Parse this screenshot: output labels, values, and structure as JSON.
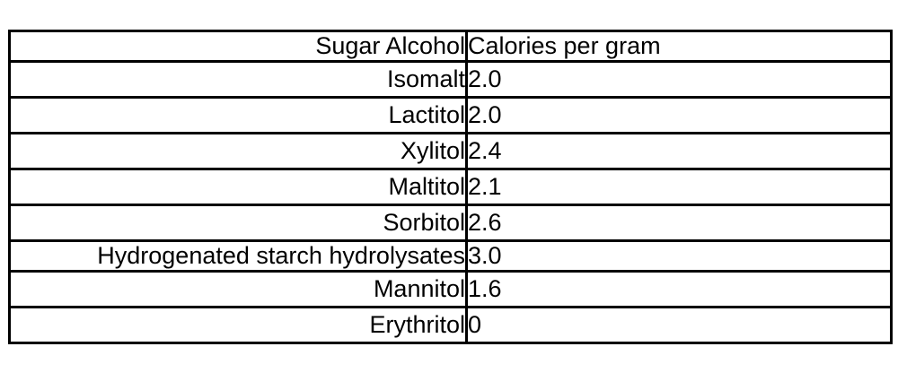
{
  "chart_data": {
    "type": "table",
    "title": "",
    "columns": [
      "Sugar Alcohol",
      "Calories per gram"
    ],
    "rows": [
      [
        "Isomalt",
        "2.0"
      ],
      [
        "Lactitol",
        "2.0"
      ],
      [
        "Xylitol",
        "2.4"
      ],
      [
        "Maltitol",
        "2.1"
      ],
      [
        "Sorbitol",
        "2.6"
      ],
      [
        "Hydrogenated starch hydrolysates",
        "3.0"
      ],
      [
        "Mannitol",
        "1.6"
      ],
      [
        "Erythritol",
        "0"
      ]
    ]
  },
  "table": {
    "headers": {
      "name": "Sugar Alcohol",
      "calories": "Calories per gram"
    },
    "rows": [
      {
        "name": "Isomalt",
        "calories": "2.0"
      },
      {
        "name": "Lactitol",
        "calories": "2.0"
      },
      {
        "name": "Xylitol",
        "calories": "2.4"
      },
      {
        "name": "Maltitol",
        "calories": "2.1"
      },
      {
        "name": "Sorbitol",
        "calories": "2.6"
      },
      {
        "name": "Hydrogenated starch hydrolysates",
        "calories": "3.0"
      },
      {
        "name": "Mannitol",
        "calories": "1.6"
      },
      {
        "name": "Erythritol",
        "calories": "0"
      }
    ]
  },
  "colors": {
    "border": "#000000",
    "background": "#ffffff",
    "text": "#000000"
  }
}
